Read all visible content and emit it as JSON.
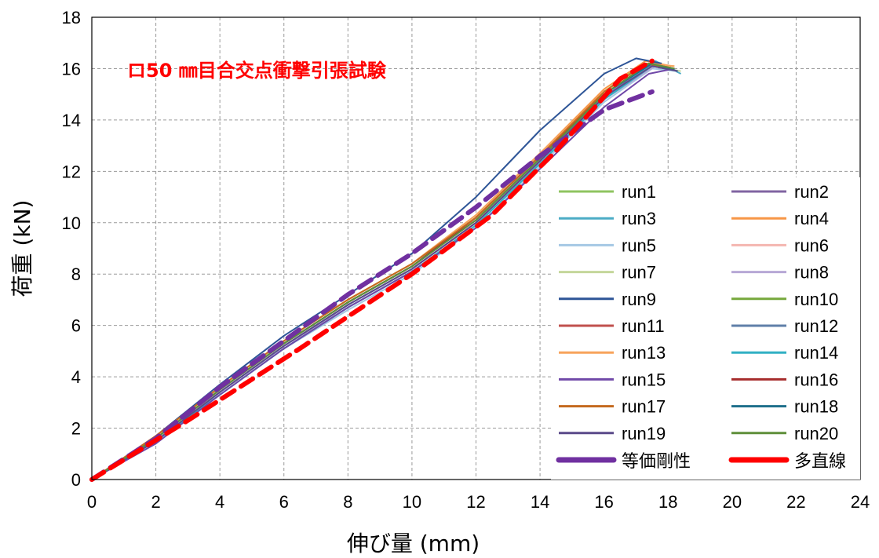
{
  "chart_data": {
    "type": "line",
    "title": "ロ50 ㎜目合交点衝撃引張試験",
    "xlabel": "伸び量 (mm)",
    "ylabel": "荷重 (kN)",
    "xlim": [
      0,
      24
    ],
    "ylim": [
      0,
      18
    ],
    "xticks": [
      "0",
      "2",
      "4",
      "6",
      "8",
      "10",
      "12",
      "14",
      "16",
      "18",
      "20",
      "22",
      "24"
    ],
    "yticks": [
      "0",
      "2",
      "4",
      "6",
      "8",
      "10",
      "12",
      "14",
      "16",
      "18"
    ],
    "grid": true,
    "legend_position": "right",
    "series": [
      {
        "name": "run1",
        "color": "#8fc460",
        "x": [
          0,
          2,
          4,
          6,
          8,
          10,
          12,
          14,
          16,
          17.2,
          18.3
        ],
        "y": [
          0,
          1.6,
          3.5,
          5.3,
          6.9,
          8.3,
          10.2,
          12.6,
          15.1,
          16.2,
          15.9
        ]
      },
      {
        "name": "run2",
        "color": "#8064a2",
        "x": [
          0,
          2,
          4,
          6,
          8,
          10,
          12,
          14,
          16,
          17.4,
          18.2
        ],
        "y": [
          0,
          1.5,
          3.4,
          5.2,
          6.8,
          8.2,
          10.0,
          12.4,
          14.9,
          16.1,
          16.0
        ]
      },
      {
        "name": "run3",
        "color": "#4bacc6",
        "x": [
          0,
          2,
          4,
          6,
          8,
          10,
          12,
          14,
          16,
          17.6,
          18.4
        ],
        "y": [
          0,
          1.5,
          3.3,
          5.1,
          6.7,
          8.1,
          9.9,
          12.3,
          14.8,
          16.3,
          15.8
        ]
      },
      {
        "name": "run4",
        "color": "#f79646",
        "x": [
          0,
          2,
          4,
          6,
          8,
          10,
          12,
          14,
          16,
          17.3,
          18.1
        ],
        "y": [
          0,
          1.7,
          3.6,
          5.4,
          7.0,
          8.4,
          10.3,
          12.7,
          15.2,
          16.3,
          16.1
        ]
      },
      {
        "name": "run5",
        "color": "#a5c8e4",
        "x": [
          0,
          2,
          4,
          6,
          8,
          10,
          12,
          14,
          16,
          17.5,
          18.3
        ],
        "y": [
          0,
          1.5,
          3.3,
          5.1,
          6.6,
          8.0,
          9.8,
          12.2,
          14.7,
          16.0,
          15.9
        ]
      },
      {
        "name": "run6",
        "color": "#f4b6b0",
        "x": [
          0,
          2,
          4,
          6,
          8,
          10,
          12,
          14,
          16,
          17.4,
          18.2
        ],
        "y": [
          0,
          1.6,
          3.5,
          5.3,
          6.9,
          8.3,
          10.1,
          12.5,
          15.0,
          16.2,
          16.0
        ]
      },
      {
        "name": "run7",
        "color": "#c4d79b",
        "x": [
          0,
          2,
          4,
          6,
          8,
          10,
          12,
          14,
          16,
          17.5,
          18.4
        ],
        "y": [
          0,
          1.6,
          3.4,
          5.2,
          6.8,
          8.2,
          10.0,
          12.4,
          14.9,
          16.1,
          15.9
        ]
      },
      {
        "name": "run8",
        "color": "#b7a8d6",
        "x": [
          0,
          2,
          4,
          6,
          8,
          10,
          12,
          14,
          16,
          17.6,
          18.3
        ],
        "y": [
          0,
          1.5,
          3.4,
          5.2,
          6.7,
          8.1,
          9.9,
          12.3,
          14.8,
          16.1,
          15.9
        ]
      },
      {
        "name": "run9",
        "color": "#2e5597",
        "x": [
          0,
          2,
          4,
          6,
          8,
          10,
          12,
          14,
          16,
          17.0,
          17.8
        ],
        "y": [
          0,
          1.7,
          3.7,
          5.6,
          7.2,
          8.8,
          11.0,
          13.6,
          15.8,
          16.4,
          16.2
        ]
      },
      {
        "name": "run10",
        "color": "#76a83c",
        "x": [
          0,
          2,
          4,
          6,
          8,
          10,
          12,
          14,
          16,
          17.3,
          18.2
        ],
        "y": [
          0,
          1.6,
          3.5,
          5.3,
          6.9,
          8.3,
          10.2,
          12.6,
          15.1,
          16.2,
          16.0
        ]
      },
      {
        "name": "run11",
        "color": "#c0504d",
        "x": [
          0,
          2,
          4,
          6,
          8,
          10,
          12,
          14,
          16,
          17.4,
          18.1
        ],
        "y": [
          0,
          1.6,
          3.5,
          5.3,
          6.9,
          8.3,
          10.1,
          12.5,
          15.0,
          16.2,
          16.0
        ]
      },
      {
        "name": "run12",
        "color": "#5f7fa8",
        "x": [
          0,
          2,
          4,
          6,
          8,
          10,
          12,
          14,
          16,
          17.5,
          18.3
        ],
        "y": [
          0,
          1.5,
          3.4,
          5.2,
          6.8,
          8.2,
          10.0,
          12.4,
          14.9,
          16.1,
          15.9
        ]
      },
      {
        "name": "run13",
        "color": "#f7a35c",
        "x": [
          0,
          2,
          4,
          6,
          8,
          10,
          12,
          14,
          16,
          17.3,
          18.2
        ],
        "y": [
          0,
          1.7,
          3.6,
          5.4,
          7.0,
          8.4,
          10.3,
          12.7,
          15.1,
          16.2,
          16.1
        ]
      },
      {
        "name": "run14",
        "color": "#31b0c4",
        "x": [
          0,
          2,
          4,
          6,
          8,
          10,
          12,
          14,
          16,
          17.5,
          18.3
        ],
        "y": [
          0,
          1.5,
          3.3,
          5.1,
          6.7,
          8.1,
          9.9,
          12.3,
          14.8,
          16.1,
          15.9
        ]
      },
      {
        "name": "run15",
        "color": "#7048a8",
        "x": [
          0,
          2,
          4,
          6,
          8,
          10,
          12,
          14,
          16,
          17.4,
          18.2
        ],
        "y": [
          0,
          1.4,
          3.3,
          5.1,
          6.7,
          8.1,
          9.8,
          12.1,
          14.5,
          15.8,
          16.0
        ]
      },
      {
        "name": "run16",
        "color": "#a62b2b",
        "x": [
          0,
          2,
          4,
          6,
          8,
          10,
          12,
          14,
          16,
          17.4,
          18.2
        ],
        "y": [
          0,
          1.6,
          3.5,
          5.3,
          6.9,
          8.3,
          10.2,
          12.6,
          15.0,
          16.2,
          16.0
        ]
      },
      {
        "name": "run17",
        "color": "#c46a1e",
        "x": [
          0,
          2,
          4,
          6,
          8,
          10,
          12,
          14,
          16,
          17.3,
          18.1
        ],
        "y": [
          0,
          1.7,
          3.6,
          5.4,
          7.0,
          8.4,
          10.2,
          12.6,
          15.1,
          16.2,
          16.0
        ]
      },
      {
        "name": "run18",
        "color": "#1f6f8b",
        "x": [
          0,
          2,
          4,
          6,
          8,
          10,
          12,
          14,
          16,
          17.5,
          18.3
        ],
        "y": [
          0,
          1.6,
          3.5,
          5.3,
          6.9,
          8.3,
          10.1,
          12.5,
          15.0,
          16.2,
          15.9
        ]
      },
      {
        "name": "run19",
        "color": "#5b4a8a",
        "x": [
          0,
          2,
          4,
          6,
          8,
          10,
          12,
          14,
          16,
          17.5,
          18.3
        ],
        "y": [
          0,
          1.5,
          3.4,
          5.2,
          6.8,
          8.2,
          10.0,
          12.4,
          14.9,
          16.1,
          15.9
        ]
      },
      {
        "name": "run20",
        "color": "#5f8f3a",
        "x": [
          0,
          2,
          4,
          6,
          8,
          10,
          12,
          14,
          16,
          17.4,
          18.2
        ],
        "y": [
          0,
          1.6,
          3.5,
          5.3,
          6.9,
          8.3,
          10.1,
          12.5,
          15.0,
          16.2,
          16.0
        ]
      }
    ],
    "fits": [
      {
        "name": "等価剛性",
        "color": "#7030a0",
        "style": "dashed-thick",
        "x": [
          0,
          2,
          4,
          6,
          8,
          10,
          12,
          14,
          16,
          17.5
        ],
        "y": [
          0,
          1.6,
          3.6,
          5.4,
          7.2,
          8.8,
          10.6,
          12.6,
          14.4,
          15.1
        ]
      },
      {
        "name": "多直線",
        "color": "#ff0000",
        "style": "dashed-thick",
        "x": [
          0,
          3,
          6.5,
          10,
          12.5,
          14.5,
          16.5,
          17.5
        ],
        "y": [
          0,
          2.3,
          5.1,
          8.0,
          10.3,
          12.8,
          15.6,
          16.3
        ]
      }
    ]
  }
}
